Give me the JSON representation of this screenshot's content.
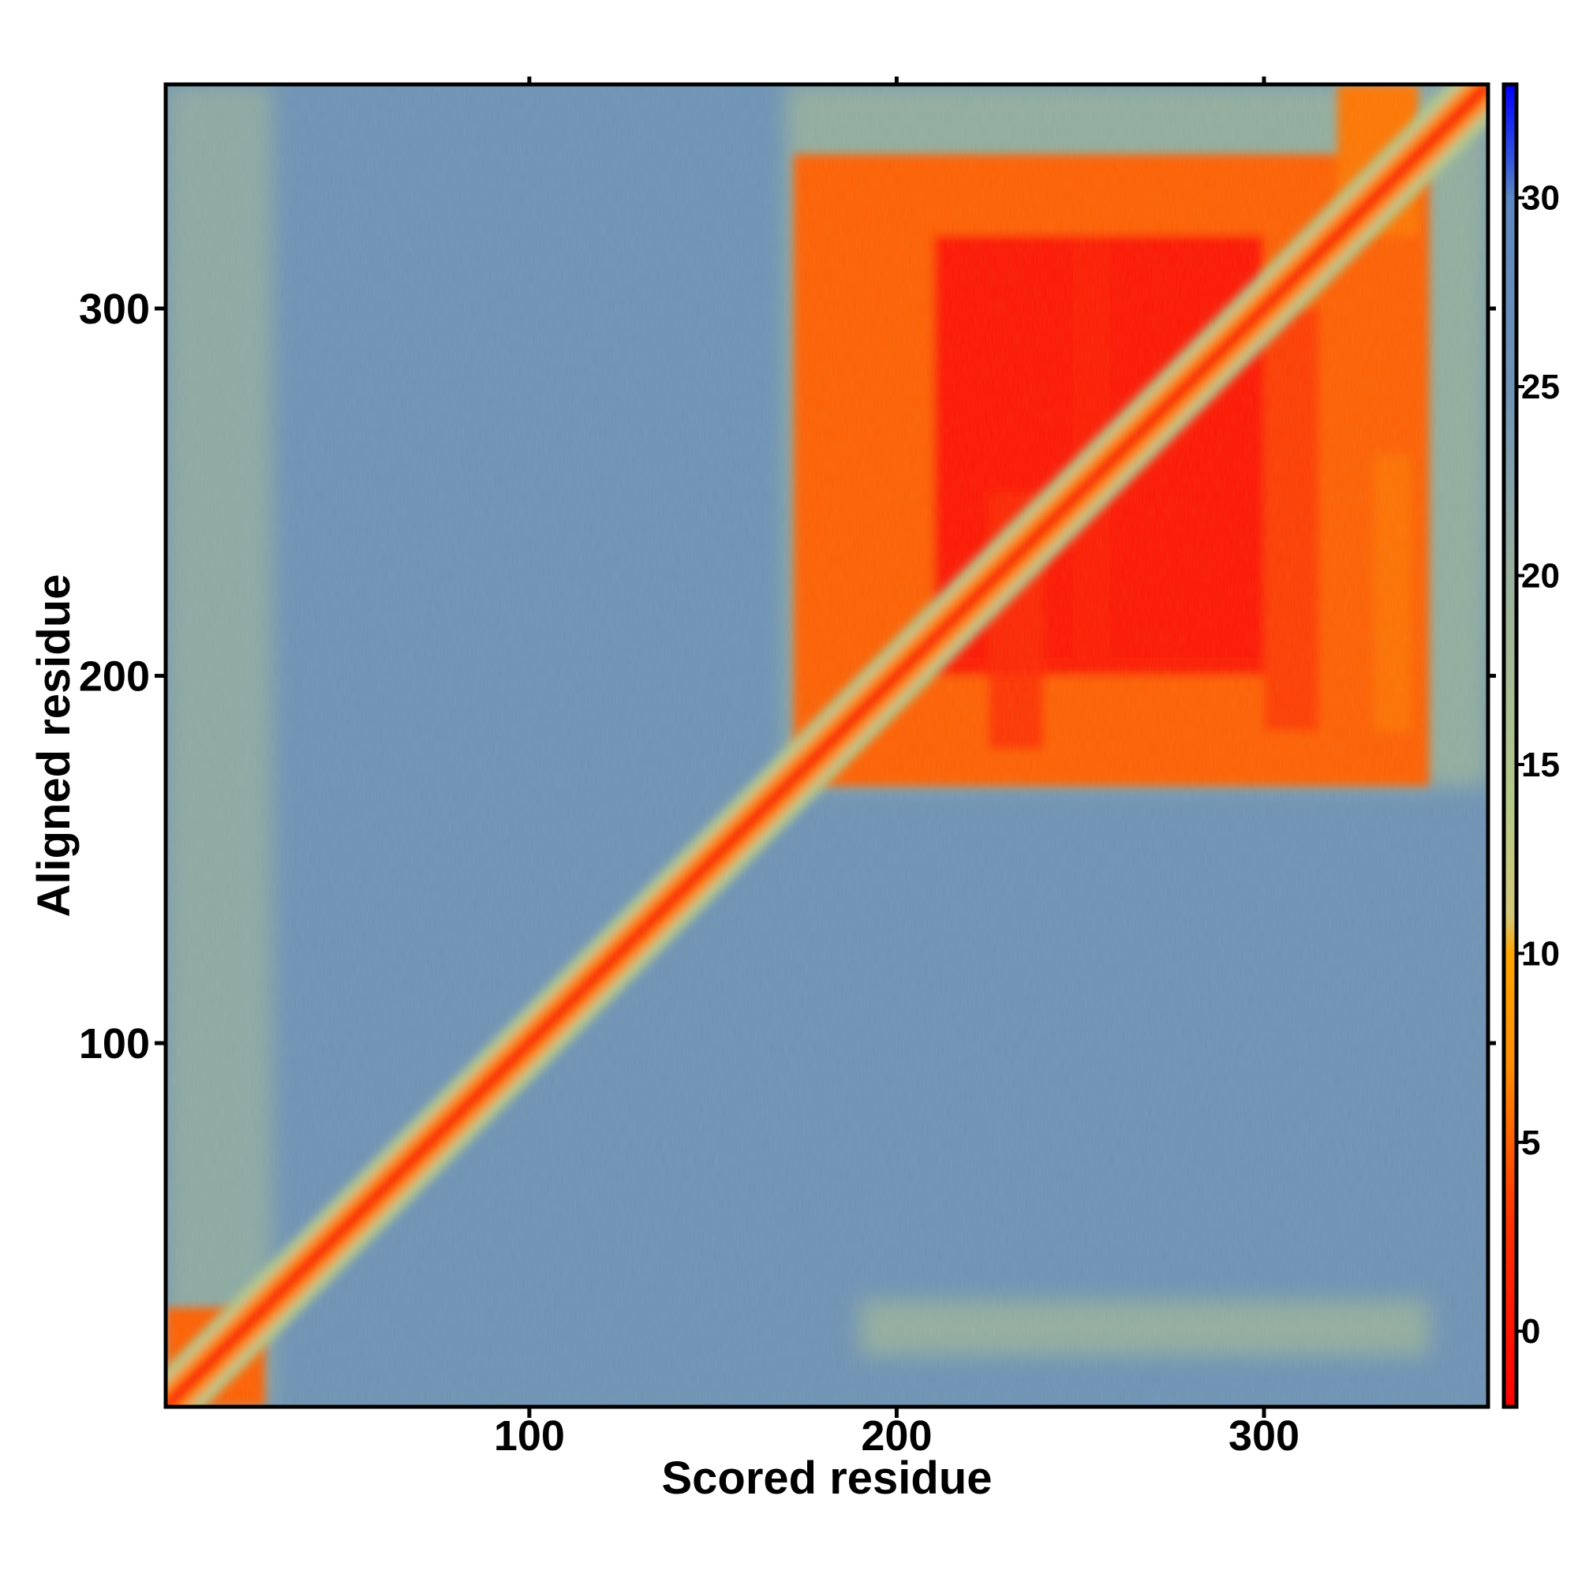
{
  "chart_data": {
    "type": "heatmap",
    "title": "",
    "xlabel": "Scored residue",
    "ylabel": "Aligned residue",
    "xlim": [
      1,
      361
    ],
    "ylim": [
      1,
      361
    ],
    "x_ticks": [
      100,
      200,
      300
    ],
    "y_ticks": [
      100,
      200,
      300
    ],
    "colorbar": {
      "range": [
        -2,
        33
      ],
      "ticks": [
        0,
        5,
        10,
        15,
        20,
        25,
        30
      ],
      "colors": [
        {
          "value": -2,
          "color": "#ff0000"
        },
        {
          "value": 3,
          "color": "#ff3300"
        },
        {
          "value": 7,
          "color": "#ff8c00"
        },
        {
          "value": 10,
          "color": "#ffa500"
        },
        {
          "value": 11,
          "color": "#d4c878"
        },
        {
          "value": 14,
          "color": "#b5c98a"
        },
        {
          "value": 20,
          "color": "#9ab09e"
        },
        {
          "value": 25,
          "color": "#6e93b5"
        },
        {
          "value": 30,
          "color": "#5d87c0"
        },
        {
          "value": 31,
          "color": "#3355dd"
        },
        {
          "value": 33,
          "color": "#0000ff"
        }
      ]
    },
    "features": {
      "diagonal": "low error along the diagonal (x = y)",
      "domain_blocks": [
        {
          "x": [
            1,
            28
          ],
          "y": [
            1,
            28
          ],
          "value": 5
        },
        {
          "x": [
            172,
            345
          ],
          "y": [
            170,
            342
          ],
          "value": 5
        },
        {
          "x": [
            210,
            300
          ],
          "y": [
            200,
            320
          ],
          "value": 1
        },
        {
          "x": [
            320,
            342
          ],
          "y": [
            320,
            361
          ],
          "value": 6
        }
      ],
      "background_value": 25
    }
  }
}
